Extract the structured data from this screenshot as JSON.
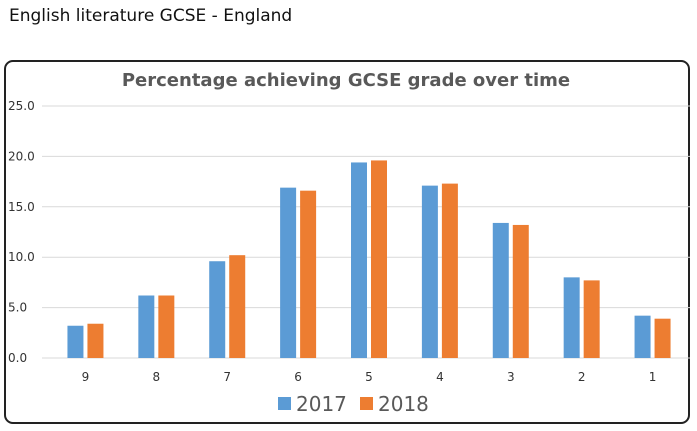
{
  "page": {
    "heading": "English literature GCSE - England"
  },
  "colors": {
    "series_2017": "#5b9bd5",
    "series_2018": "#ed7d31",
    "grid": "#d9d9d9",
    "frame": "#222222"
  },
  "chart_data": {
    "type": "bar",
    "title": "Percentage achieving GCSE grade over time",
    "xlabel": "",
    "ylabel": "",
    "categories": [
      "9",
      "8",
      "7",
      "6",
      "5",
      "4",
      "3",
      "2",
      "1"
    ],
    "series": [
      {
        "name": "2017",
        "values": [
          3.2,
          6.2,
          9.6,
          16.9,
          19.4,
          17.1,
          13.4,
          8.0,
          4.2
        ]
      },
      {
        "name": "2018",
        "values": [
          3.4,
          6.2,
          10.2,
          16.6,
          19.6,
          17.3,
          13.2,
          7.7,
          3.9
        ]
      }
    ],
    "ylim": [
      0,
      25
    ],
    "yticks": [
      "0.0",
      "5.0",
      "10.0",
      "15.0",
      "20.0",
      "25.0"
    ],
    "grid": true,
    "legend_position": "bottom"
  }
}
